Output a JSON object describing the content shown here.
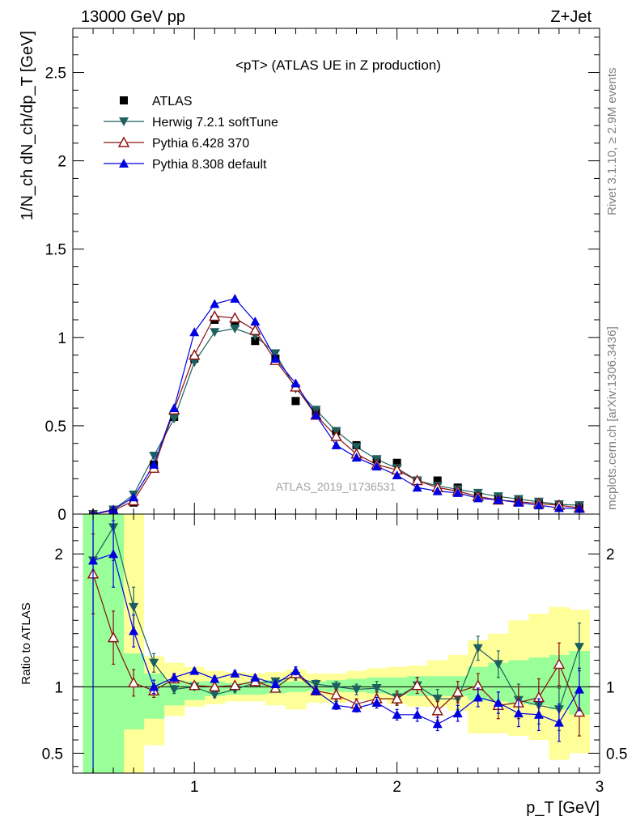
{
  "header": {
    "left": "13000 GeV pp",
    "right": "Z+Jet"
  },
  "side": {
    "top": "Rivet 3.1.10, ≥ 2.9M events",
    "bottom": "mcplots.cern.ch [arXiv:1306.3436]"
  },
  "colors": {
    "atlas": "#000000",
    "herwig": "#1e5f5f",
    "pythia6": "#8b1010",
    "pythia8": "#0000e0",
    "band_inner": "#99ff99",
    "band_outer": "#ffff99"
  },
  "chart_data": [
    {
      "type": "scatter",
      "title": "<pT> (ATLAS UE in Z production)",
      "ylabel": "1/N_ch dN_ch/dp_T [GeV]",
      "watermark": "ATLAS_2019_I1736531",
      "xlim": [
        0.4,
        3.0
      ],
      "ylim": [
        0,
        2.75
      ],
      "yticks": [
        0,
        0.5,
        1,
        1.5,
        2,
        2.5
      ],
      "ytick_labels": [
        "0",
        "0.5",
        "1",
        "1.5",
        "2",
        "2.5"
      ],
      "legend_placement": "top-left",
      "x": [
        0.5,
        0.6,
        0.7,
        0.8,
        0.9,
        1.0,
        1.1,
        1.2,
        1.3,
        1.4,
        1.5,
        1.6,
        1.7,
        1.8,
        1.9,
        2.0,
        2.1,
        2.2,
        2.3,
        2.4,
        2.5,
        2.6,
        2.7,
        2.8,
        2.9
      ],
      "series": [
        {
          "name": "ATLAS",
          "marker": "square",
          "values": [
            0.0,
            0.01,
            0.065,
            0.28,
            0.55,
            0.88,
            1.1,
            1.08,
            0.98,
            0.88,
            0.64,
            0.58,
            0.47,
            0.39,
            0.31,
            0.29,
            0.19,
            0.19,
            0.15,
            0.1,
            0.09,
            0.08,
            0.065,
            0.045,
            0.04
          ]
        },
        {
          "name": "Herwig 7.2.1 softTune",
          "marker": "triangle-down",
          "values": [
            0.0,
            0.025,
            0.11,
            0.33,
            0.54,
            0.86,
            1.03,
            1.05,
            1.01,
            0.91,
            0.71,
            0.59,
            0.47,
            0.38,
            0.31,
            0.26,
            0.19,
            0.16,
            0.14,
            0.12,
            0.1,
            0.085,
            0.07,
            0.055,
            0.05
          ]
        },
        {
          "name": "Pythia 6.428 370",
          "marker": "triangle-open",
          "values": [
            0.0,
            0.02,
            0.075,
            0.26,
            0.59,
            0.9,
            1.12,
            1.11,
            1.04,
            0.87,
            0.72,
            0.56,
            0.44,
            0.34,
            0.28,
            0.25,
            0.19,
            0.15,
            0.13,
            0.1,
            0.08,
            0.07,
            0.06,
            0.05,
            0.035
          ]
        },
        {
          "name": "Pythia 8.308 default",
          "marker": "triangle-up",
          "values": [
            0.0,
            0.025,
            0.095,
            0.28,
            0.6,
            1.03,
            1.19,
            1.22,
            1.09,
            0.88,
            0.74,
            0.56,
            0.39,
            0.32,
            0.27,
            0.22,
            0.15,
            0.13,
            0.12,
            0.09,
            0.08,
            0.065,
            0.05,
            0.035,
            0.03
          ]
        }
      ]
    },
    {
      "type": "scatter",
      "ylabel": "Ratio to ATLAS",
      "xlabel": "p_T [GeV]",
      "xlim": [
        0.4,
        3.0
      ],
      "ylim": [
        0.35,
        2.3
      ],
      "xticks": [
        1,
        2,
        3
      ],
      "xtick_labels": [
        "1",
        "2",
        "3"
      ],
      "yticks": [
        0.5,
        1,
        2
      ],
      "ytick_labels": [
        "0.5",
        "1",
        "2"
      ],
      "x": [
        0.5,
        0.6,
        0.7,
        0.8,
        0.9,
        1.0,
        1.1,
        1.2,
        1.3,
        1.4,
        1.5,
        1.6,
        1.7,
        1.8,
        1.9,
        2.0,
        2.1,
        2.2,
        2.3,
        2.4,
        2.5,
        2.6,
        2.7,
        2.8,
        2.9
      ],
      "bands": {
        "inner_low": [
          0.35,
          0.35,
          0.68,
          0.76,
          0.86,
          0.9,
          0.93,
          0.94,
          0.94,
          0.95,
          0.96,
          0.97,
          0.96,
          0.96,
          0.95,
          0.94,
          0.93,
          0.93,
          0.93,
          0.9,
          0.89,
          0.87,
          0.86,
          0.83,
          0.79
        ],
        "inner_high": [
          2.3,
          2.3,
          1.25,
          1.1,
          1.05,
          1.04,
          1.04,
          1.03,
          1.04,
          1.05,
          1.04,
          1.04,
          1.05,
          1.06,
          1.07,
          1.07,
          1.08,
          1.08,
          1.08,
          1.15,
          1.18,
          1.2,
          1.22,
          1.24,
          1.27
        ],
        "outer_low": [
          0.35,
          0.35,
          0.35,
          0.56,
          0.78,
          0.85,
          0.87,
          0.89,
          0.89,
          0.86,
          0.83,
          0.88,
          0.88,
          0.9,
          0.9,
          0.87,
          0.85,
          0.85,
          0.82,
          0.65,
          0.65,
          0.63,
          0.6,
          0.45,
          0.5
        ],
        "outer_high": [
          2.3,
          2.3,
          2.3,
          1.23,
          1.18,
          1.15,
          1.12,
          1.11,
          1.1,
          1.11,
          1.13,
          1.1,
          1.1,
          1.12,
          1.14,
          1.15,
          1.16,
          1.2,
          1.24,
          1.35,
          1.4,
          1.5,
          1.55,
          1.6,
          1.58
        ]
      },
      "series": [
        {
          "name": "Herwig 7.2.1 softTune",
          "marker": "triangle-down",
          "values": [
            1.95,
            2.2,
            1.6,
            1.18,
            0.98,
            1.0,
            0.94,
            0.98,
            1.03,
            1.04,
            1.08,
            1.02,
            1.0,
            0.98,
            0.99,
            0.92,
            1.01,
            0.91,
            0.91,
            1.29,
            1.17,
            0.9,
            0.86,
            0.83,
            1.3
          ],
          "errors": [
            0.0,
            0.25,
            0.15,
            0.07,
            0.03,
            0.02,
            0.02,
            0.02,
            0.02,
            0.02,
            0.03,
            0.03,
            0.04,
            0.04,
            0.05,
            0.05,
            0.06,
            0.07,
            0.08,
            0.09,
            0.1,
            0.12,
            0.14,
            0.16,
            0.18
          ]
        },
        {
          "name": "Pythia 6.428 370",
          "marker": "triangle-open",
          "values": [
            1.85,
            1.37,
            1.03,
            0.97,
            1.06,
            1.01,
            1.0,
            1.01,
            1.04,
            0.99,
            1.1,
            0.97,
            0.94,
            0.87,
            0.91,
            0.91,
            1.01,
            0.82,
            0.96,
            1.01,
            0.86,
            0.88,
            0.92,
            1.17,
            0.81
          ],
          "errors": [
            0.3,
            0.2,
            0.1,
            0.05,
            0.03,
            0.02,
            0.02,
            0.02,
            0.02,
            0.02,
            0.03,
            0.03,
            0.04,
            0.04,
            0.05,
            0.05,
            0.06,
            0.07,
            0.08,
            0.09,
            0.1,
            0.12,
            0.14,
            0.16,
            0.18
          ]
        },
        {
          "name": "Pythia 8.308 default",
          "marker": "triangle-up",
          "values": [
            1.95,
            2.0,
            1.42,
            1.0,
            1.07,
            1.12,
            1.06,
            1.1,
            1.07,
            1.02,
            1.12,
            0.97,
            0.86,
            0.84,
            0.88,
            0.79,
            0.79,
            0.72,
            0.8,
            0.92,
            0.88,
            0.8,
            0.79,
            0.73,
            0.98
          ],
          "errors": [
            1.6,
            0.25,
            0.12,
            0.05,
            0.03,
            0.02,
            0.02,
            0.02,
            0.02,
            0.02,
            0.03,
            0.03,
            0.03,
            0.03,
            0.04,
            0.04,
            0.05,
            0.05,
            0.06,
            0.07,
            0.08,
            0.1,
            0.12,
            0.14,
            0.16
          ]
        }
      ]
    }
  ]
}
